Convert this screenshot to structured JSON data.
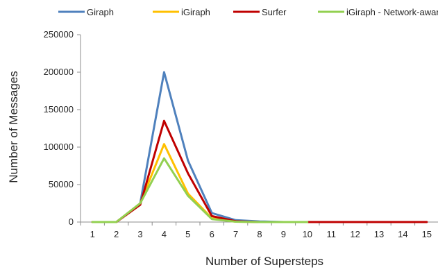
{
  "chart_data": {
    "type": "line",
    "title": "",
    "xlabel": "Number of Supersteps",
    "ylabel": "Number of Messages",
    "x": [
      1,
      2,
      3,
      4,
      5,
      6,
      7,
      8,
      9,
      10,
      11,
      12,
      13,
      14,
      15
    ],
    "ylim": [
      0,
      250000
    ],
    "yticks": [
      0,
      50000,
      100000,
      150000,
      200000,
      250000
    ],
    "ytick_labels": [
      "0",
      "50000",
      "100000",
      "150000",
      "200000",
      "250000"
    ],
    "grid": "none",
    "legend": "top",
    "series": [
      {
        "name": "Giraph",
        "color": "#4f81bd",
        "values": [
          0,
          0,
          25000,
          200000,
          82000,
          12000,
          2500,
          800,
          0,
          0,
          null,
          null,
          null,
          null,
          null
        ]
      },
      {
        "name": "iGiraph",
        "color": "#ffc000",
        "values": [
          0,
          0,
          25000,
          104000,
          38000,
          5000,
          500,
          0,
          0,
          0,
          null,
          null,
          null,
          null,
          null
        ]
      },
      {
        "name": "Surfer",
        "color": "#c00000",
        "values": [
          0,
          0,
          23000,
          135000,
          65000,
          8000,
          1000,
          0,
          0,
          0,
          0,
          0,
          0,
          0,
          0
        ]
      },
      {
        "name": "iGiraph - Network-aware",
        "color": "#92d050",
        "values": [
          0,
          0,
          25000,
          85000,
          35000,
          4000,
          500,
          0,
          0,
          0,
          null,
          null,
          null,
          null,
          null
        ]
      }
    ]
  }
}
